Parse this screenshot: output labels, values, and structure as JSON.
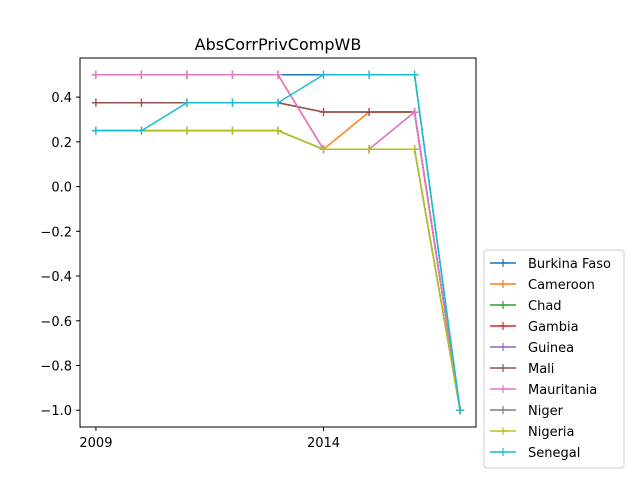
{
  "chart_data": {
    "type": "line",
    "title": "AbsCorrPrivCompWB",
    "xlabel": "",
    "ylabel": "",
    "x": [
      2009,
      2010,
      2011,
      2012,
      2013,
      2014,
      2015,
      2016,
      2017
    ],
    "xlim": [
      2008.65,
      2017.35
    ],
    "ylim": [
      -1.075,
      0.575
    ],
    "x_ticks": [
      {
        "value": 2009,
        "label": "2009"
      },
      {
        "value": 2014,
        "label": "2014"
      }
    ],
    "y_ticks": [
      {
        "value": 0.4,
        "label": "0.4"
      },
      {
        "value": 0.2,
        "label": "0.2"
      },
      {
        "value": 0.0,
        "label": "0.0"
      },
      {
        "value": -0.2,
        "label": "−0.2"
      },
      {
        "value": -0.4,
        "label": "−0.4"
      },
      {
        "value": -0.6,
        "label": "−0.6"
      },
      {
        "value": -0.8,
        "label": "−0.8"
      },
      {
        "value": -1.0,
        "label": "−1.0"
      }
    ],
    "grid": false,
    "legend_position": "outside-bottom-right",
    "marker": "plus",
    "series": [
      {
        "name": "Burkina Faso",
        "color": "#1f77b4",
        "values": [
          0.5,
          0.5,
          0.5,
          0.5,
          0.5,
          0.5,
          0.5,
          0.5,
          -1.0
        ]
      },
      {
        "name": "Cameroon",
        "color": "#ff7f0e",
        "values": [
          0.5,
          0.5,
          0.5,
          0.5,
          0.5,
          0.1667,
          0.3333,
          0.3333,
          -1.0
        ]
      },
      {
        "name": "Chad",
        "color": "#2ca02c",
        "values": [
          0.25,
          0.25,
          0.25,
          0.25,
          0.25,
          0.1667,
          0.1667,
          0.1667,
          -1.0
        ]
      },
      {
        "name": "Gambia",
        "color": "#d62728",
        "values": [
          0.375,
          0.375,
          0.375,
          0.375,
          0.375,
          0.3333,
          0.3333,
          0.3333,
          -1.0
        ]
      },
      {
        "name": "Guinea",
        "color": "#9467bd",
        "values": [
          0.5,
          0.5,
          0.5,
          0.5,
          0.5,
          0.1667,
          0.1667,
          0.3333,
          -1.0
        ]
      },
      {
        "name": "Mali",
        "color": "#8c564b",
        "values": [
          0.375,
          0.375,
          0.375,
          0.375,
          0.375,
          0.3333,
          0.3333,
          0.3333,
          -1.0
        ]
      },
      {
        "name": "Mauritania",
        "color": "#e377c2",
        "values": [
          0.5,
          0.5,
          0.5,
          0.5,
          0.5,
          0.1667,
          0.1667,
          0.3333,
          -1.0
        ]
      },
      {
        "name": "Niger",
        "color": "#7f7f7f",
        "values": [
          0.25,
          0.25,
          0.25,
          0.25,
          0.25,
          0.1667,
          0.1667,
          0.1667,
          -1.0
        ]
      },
      {
        "name": "Nigeria",
        "color": "#bcbd22",
        "values": [
          0.25,
          0.25,
          0.25,
          0.25,
          0.25,
          0.1667,
          0.1667,
          0.1667,
          -1.0
        ]
      },
      {
        "name": "Senegal",
        "color": "#17becf",
        "values": [
          0.25,
          0.25,
          0.375,
          0.375,
          0.375,
          0.5,
          0.5,
          0.5,
          -1.0
        ]
      }
    ]
  }
}
